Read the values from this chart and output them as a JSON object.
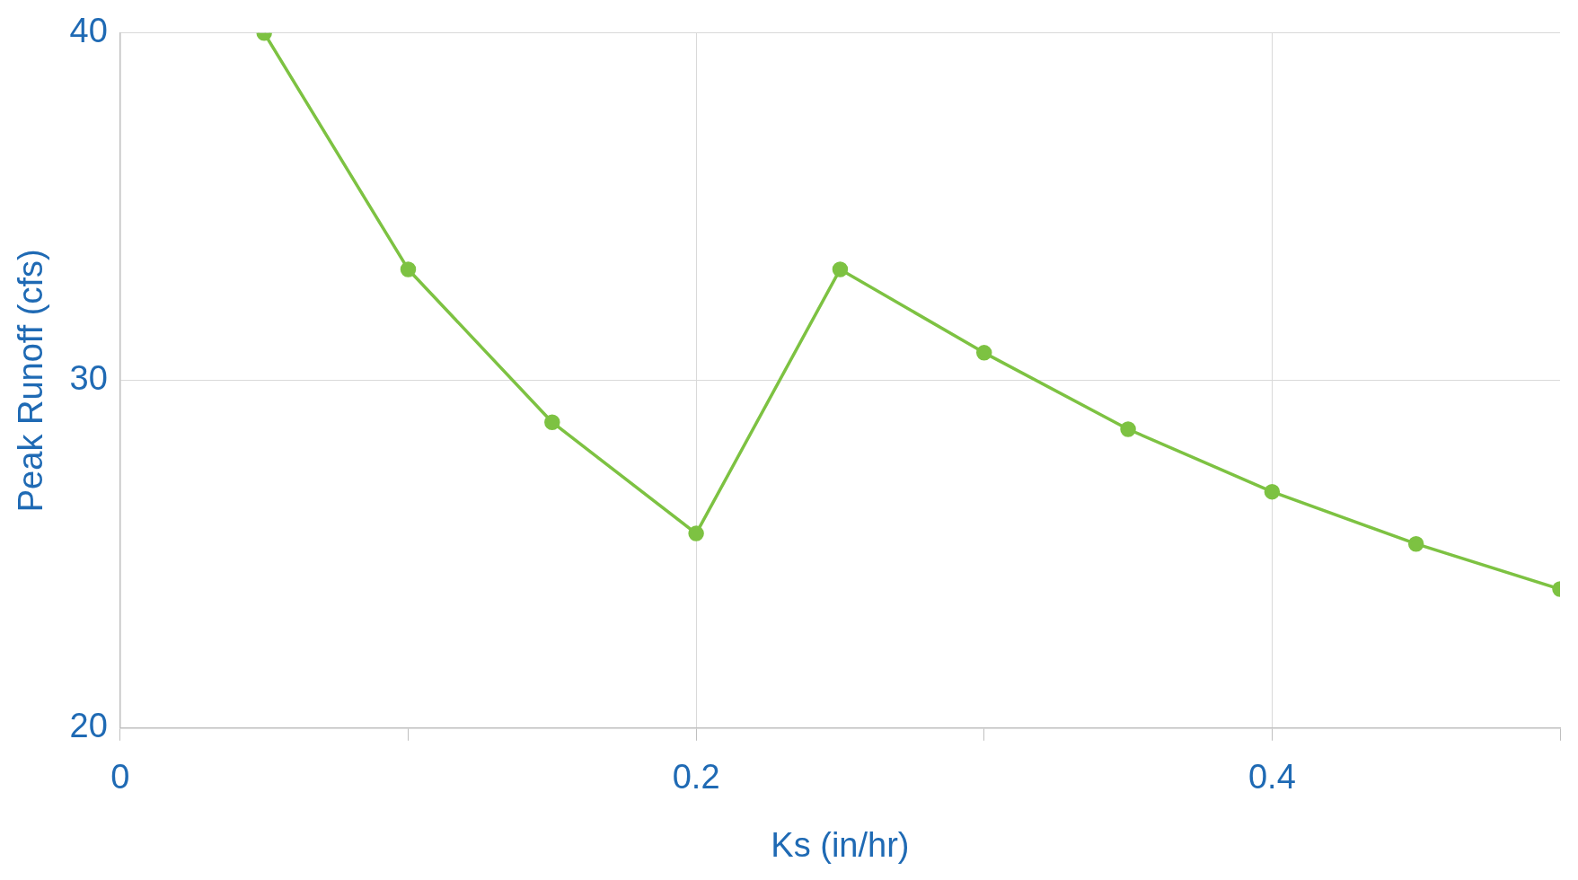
{
  "chart_data": {
    "type": "line",
    "xlabel": "Ks (in/hr)",
    "ylabel": "Peak Runoff (cfs)",
    "x": [
      0.05,
      0.1,
      0.15,
      0.2,
      0.25,
      0.3,
      0.35,
      0.4,
      0.45,
      0.5
    ],
    "series": [
      {
        "color": "#7dc242",
        "values": [
          40,
          33.2,
          28.8,
          25.6,
          33.2,
          30.8,
          28.6,
          26.8,
          25.3,
          24.0
        ]
      }
    ],
    "xlim": [
      0,
      0.5
    ],
    "xticks": [
      0,
      {
        "value": 0.1,
        "label": null
      },
      0.2,
      {
        "value": 0.3,
        "label": null
      },
      0.4,
      {
        "value": 0.5,
        "label": null
      }
    ],
    "ylim": [
      20,
      40
    ],
    "yticks": [
      20,
      30,
      40
    ],
    "grid": true,
    "marker": "circle",
    "line_style": "solid",
    "legend": false
  }
}
